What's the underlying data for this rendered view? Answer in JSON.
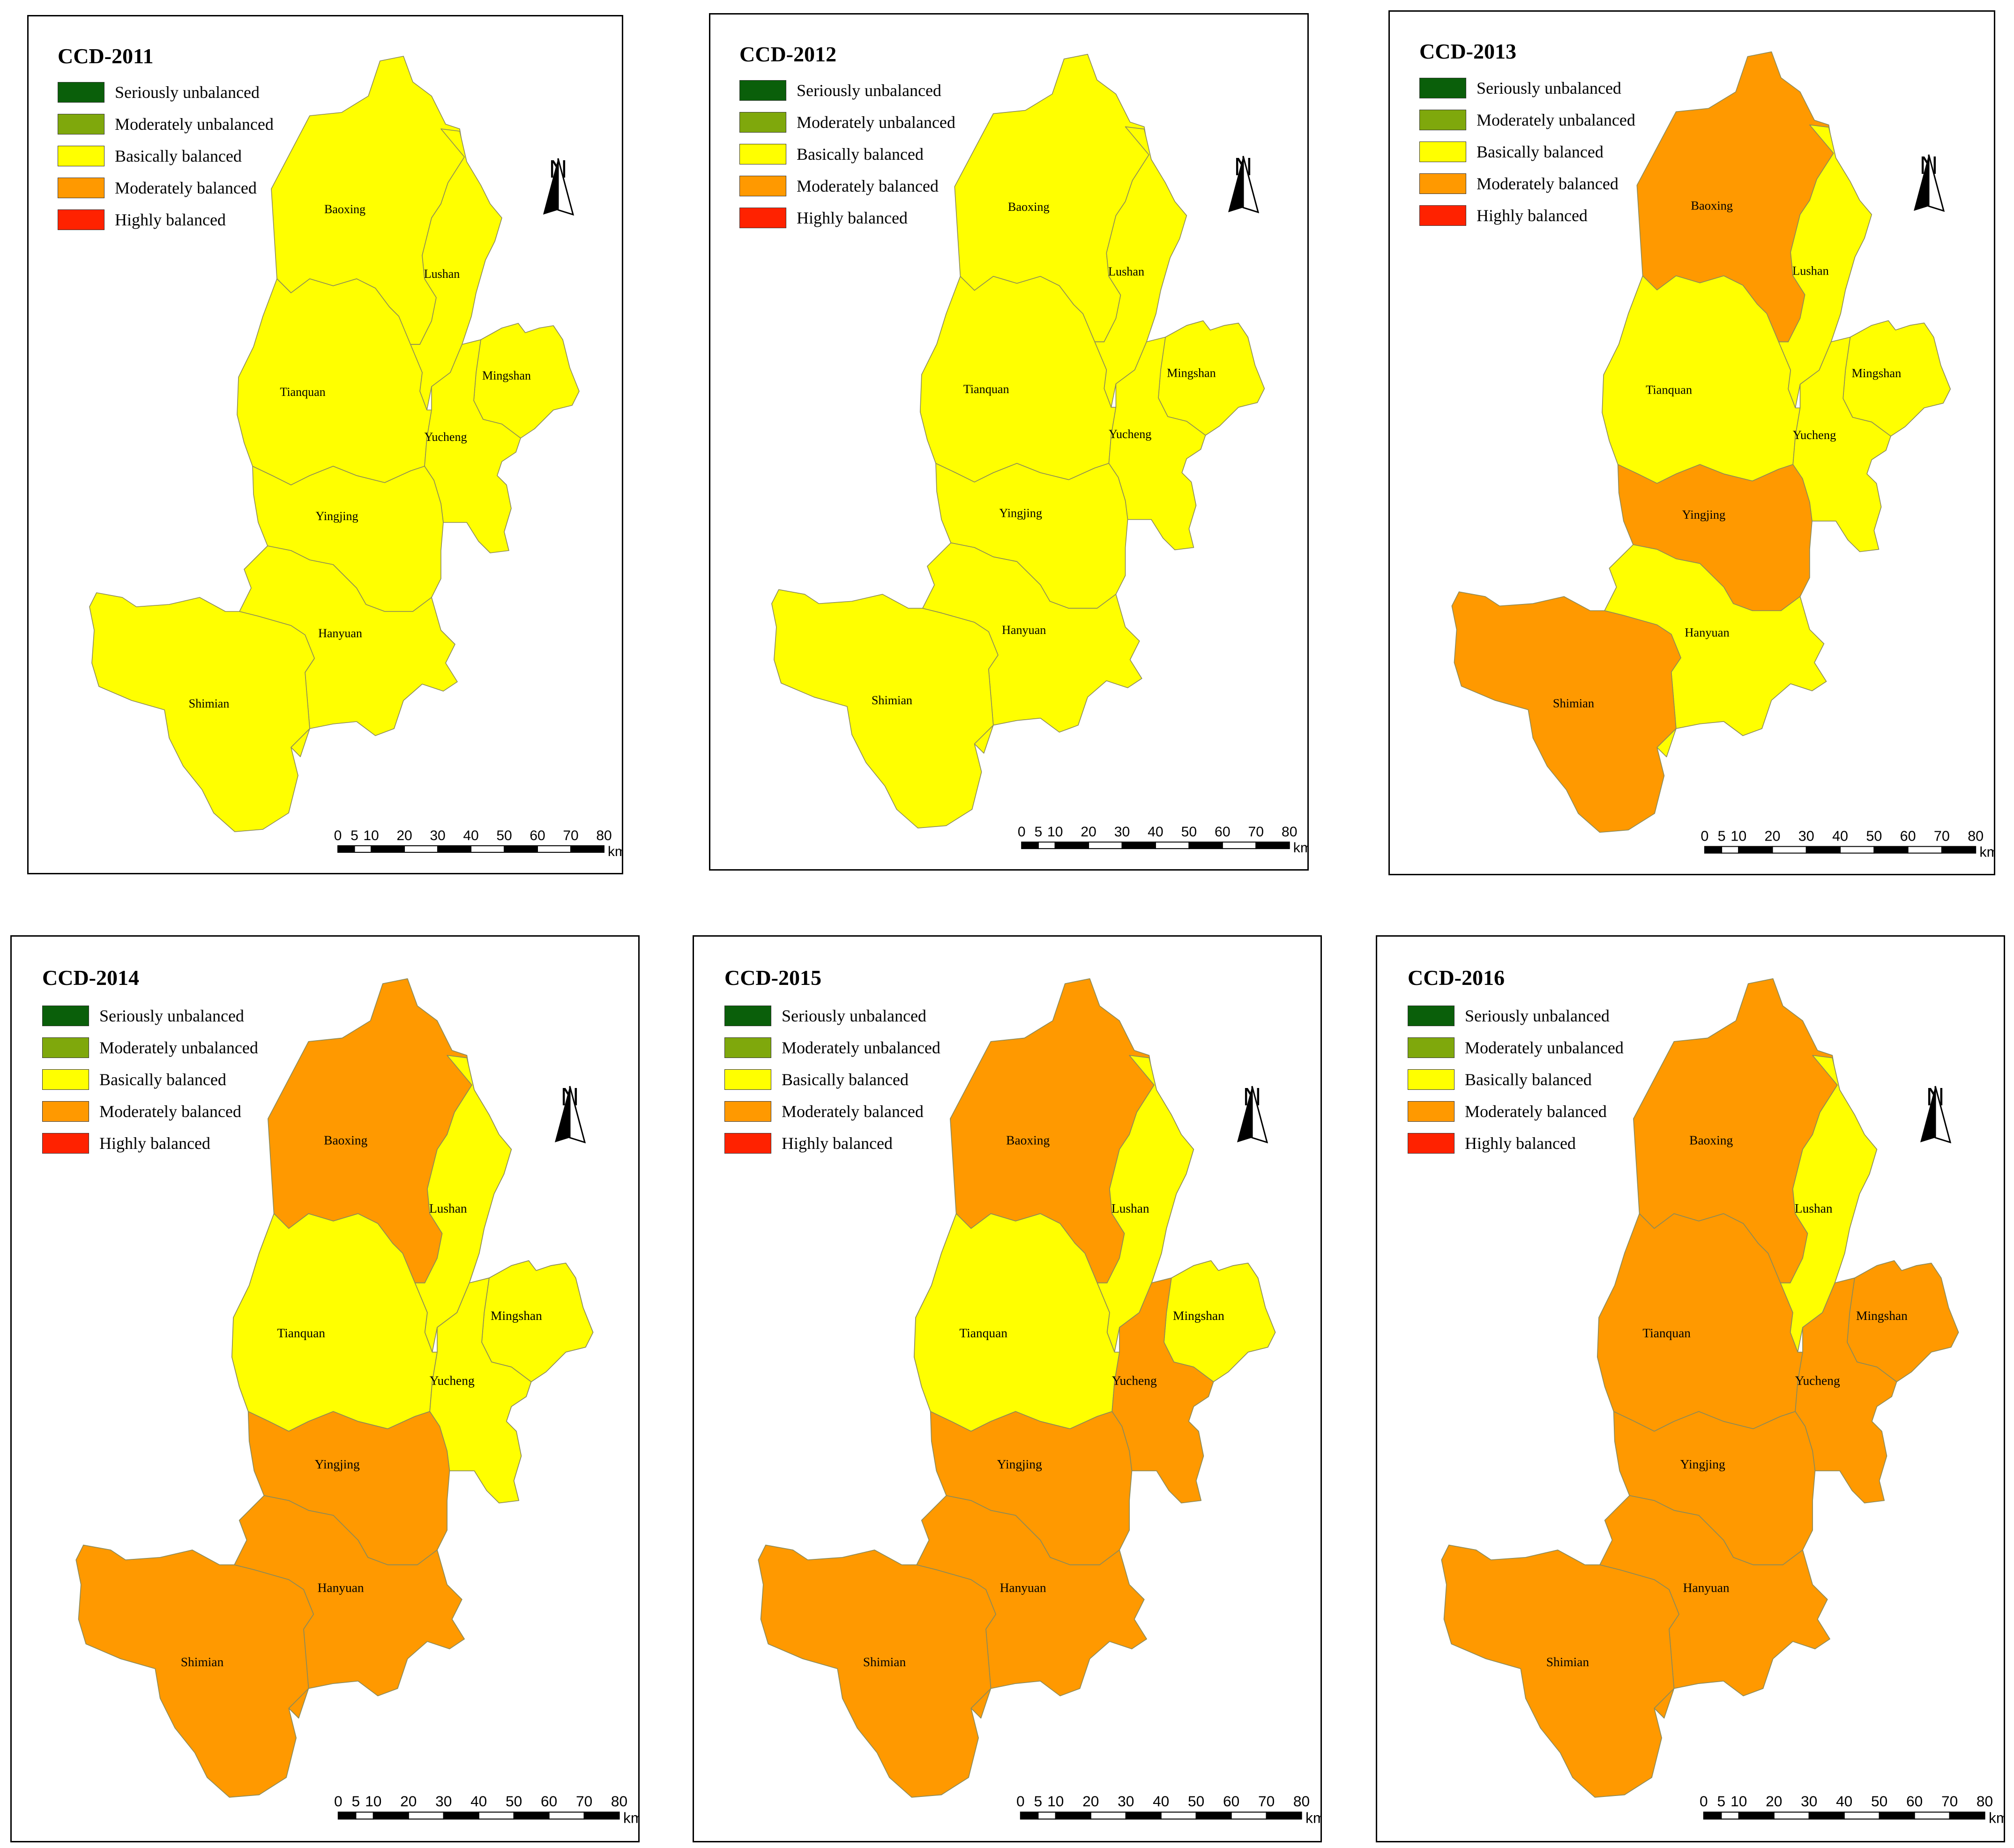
{
  "legend": [
    {
      "label": "Seriously unbalanced",
      "color": "#0a5f0a"
    },
    {
      "label": "Moderately unbalanced",
      "color": "#7fa80c"
    },
    {
      "label": "Basically balanced",
      "color": "#ffff00"
    },
    {
      "label": "Moderately balanced",
      "color": "#ff9900"
    },
    {
      "label": "Highly balanced",
      "color": "#ff2200"
    }
  ],
  "north_label": "N",
  "counties": [
    "Baoxing",
    "Lushan",
    "Tianquan",
    "Mingshan",
    "Yucheng",
    "Yingjing",
    "Hanyuan",
    "Shimian"
  ],
  "scale": {
    "ticks": [
      "0",
      "5",
      "10",
      "20",
      "30",
      "40",
      "50",
      "60",
      "70",
      "80"
    ],
    "unit": "km"
  },
  "maps": [
    {
      "title": "CCD-2011",
      "classes": {
        "Baoxing": "Basically balanced",
        "Lushan": "Basically balanced",
        "Tianquan": "Basically balanced",
        "Mingshan": "Basically balanced",
        "Yucheng": "Basically balanced",
        "Yingjing": "Basically balanced",
        "Hanyuan": "Basically balanced",
        "Shimian": "Basically balanced"
      }
    },
    {
      "title": "CCD-2012",
      "classes": {
        "Baoxing": "Basically balanced",
        "Lushan": "Basically balanced",
        "Tianquan": "Basically balanced",
        "Mingshan": "Basically balanced",
        "Yucheng": "Basically balanced",
        "Yingjing": "Basically balanced",
        "Hanyuan": "Basically balanced",
        "Shimian": "Basically balanced"
      }
    },
    {
      "title": "CCD-2013",
      "classes": {
        "Baoxing": "Moderately balanced",
        "Lushan": "Basically balanced",
        "Tianquan": "Basically balanced",
        "Mingshan": "Basically balanced",
        "Yucheng": "Basically balanced",
        "Yingjing": "Moderately balanced",
        "Hanyuan": "Basically balanced",
        "Shimian": "Moderately balanced"
      }
    },
    {
      "title": "CCD-2014",
      "classes": {
        "Baoxing": "Moderately balanced",
        "Lushan": "Basically balanced",
        "Tianquan": "Basically balanced",
        "Mingshan": "Basically balanced",
        "Yucheng": "Basically balanced",
        "Yingjing": "Moderately balanced",
        "Hanyuan": "Moderately balanced",
        "Shimian": "Moderately balanced"
      }
    },
    {
      "title": "CCD-2015",
      "classes": {
        "Baoxing": "Moderately balanced",
        "Lushan": "Basically balanced",
        "Tianquan": "Basically balanced",
        "Mingshan": "Basically balanced",
        "Yucheng": "Moderately balanced",
        "Yingjing": "Moderately balanced",
        "Hanyuan": "Moderately balanced",
        "Shimian": "Moderately balanced"
      }
    },
    {
      "title": "CCD-2016",
      "classes": {
        "Baoxing": "Moderately balanced",
        "Lushan": "Basically balanced",
        "Tianquan": "Moderately balanced",
        "Mingshan": "Moderately balanced",
        "Yucheng": "Moderately balanced",
        "Yingjing": "Moderately balanced",
        "Hanyuan": "Moderately balanced",
        "Shimian": "Moderately balanced"
      }
    }
  ]
}
